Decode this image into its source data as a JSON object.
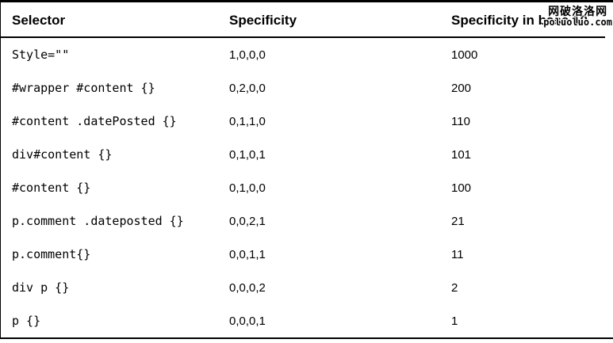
{
  "table": {
    "headers": [
      {
        "label": "Selector"
      },
      {
        "label": "Specificity"
      },
      {
        "label": "Specificity in base 10"
      }
    ],
    "rows": [
      {
        "selector": "Style=\"\"",
        "specificity": "1,0,0,0",
        "base10": "1000"
      },
      {
        "selector": "#wrapper #content {}",
        "specificity": "0,2,0,0",
        "base10": "200"
      },
      {
        "selector": "#content .datePosted {}",
        "specificity": "0,1,1,0",
        "base10": "110"
      },
      {
        "selector": "div#content {}",
        "specificity": "0,1,0,1",
        "base10": "101"
      },
      {
        "selector": "#content {}",
        "specificity": "0,1,0,0",
        "base10": "100"
      },
      {
        "selector": "p.comment .dateposted {}",
        "specificity": "0,0,2,1",
        "base10": "21"
      },
      {
        "selector": "p.comment{}",
        "specificity": "0,0,1,1",
        "base10": "11"
      },
      {
        "selector": "div p {}",
        "specificity": "0,0,0,2",
        "base10": "2"
      },
      {
        "selector": "p {}",
        "specificity": "0,0,0,1",
        "base10": "1"
      }
    ]
  },
  "watermark": {
    "line1": "网破洛洛网",
    "line2": "poluoluo.com"
  },
  "colors": {
    "border": "#000000",
    "text": "#000000",
    "background": "#ffffff"
  }
}
